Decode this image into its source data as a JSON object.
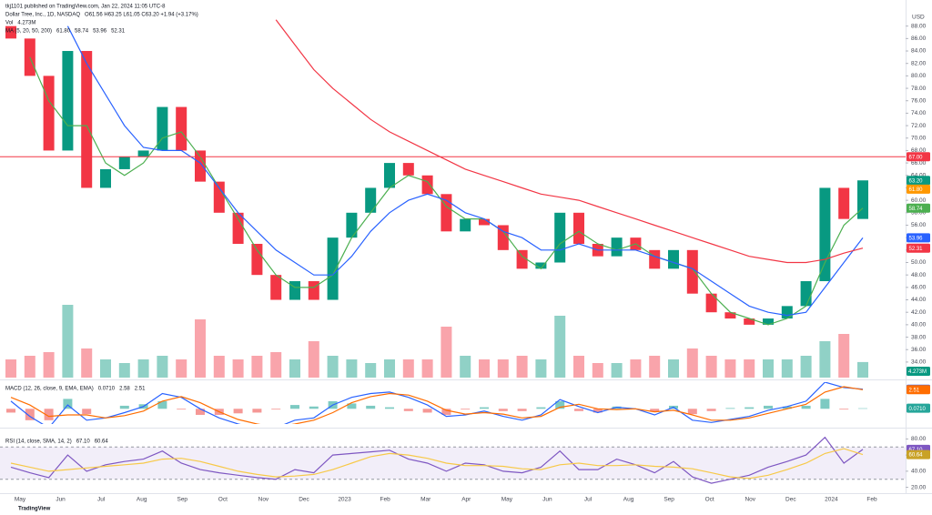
{
  "publisher": "tkj1101 published on TradingView.com, Jan 22, 2024 11:05 UTC-8",
  "currency": "USD",
  "footer": "TradingView",
  "x_labels": [
    "May",
    "Jun",
    "Jul",
    "Aug",
    "Sep",
    "Oct",
    "Nov",
    "Dec",
    "2023",
    "Feb",
    "Mar",
    "Apr",
    "May",
    "Jun",
    "Jul",
    "Aug",
    "Sep",
    "Oct",
    "Nov",
    "Dec",
    "2024",
    "Feb"
  ],
  "chart_data": [
    {
      "type": "candlestick",
      "title": "Dollar Tree, Inc., 1D, NASDAQ",
      "ohlc_text": "O61.56 H63.25 L61.05 C63.20 +1.94 (+3.17%)",
      "up_color": "#089981",
      "down_color": "#f23645",
      "open": [
        88,
        86,
        80,
        68,
        84,
        62,
        65,
        67,
        68,
        75,
        68,
        63,
        58,
        53,
        48,
        44,
        47,
        44,
        54,
        58,
        62,
        66,
        64,
        61,
        55,
        57,
        56,
        52,
        49,
        50,
        58,
        53,
        51,
        54,
        52,
        49,
        52,
        45,
        42,
        41,
        40,
        41,
        43,
        47,
        62,
        57
      ],
      "close": [
        86,
        80,
        68,
        84,
        62,
        65,
        67,
        68,
        75,
        68,
        63,
        58,
        53,
        48,
        44,
        47,
        44,
        54,
        58,
        62,
        66,
        64,
        61,
        55,
        57,
        56,
        52,
        49,
        50,
        58,
        53,
        51,
        54,
        52,
        49,
        52,
        45,
        42,
        41,
        40,
        41,
        43,
        47,
        62,
        57,
        63.2
      ],
      "ma_title": "MA (5, 20, 50, 200)",
      "series": [
        {
          "color": "#4caf50",
          "values": [
            null,
            83,
            76,
            72,
            72,
            66,
            64,
            66,
            70,
            71,
            67,
            62,
            57,
            52,
            48,
            46,
            46,
            48,
            54,
            58,
            62,
            64,
            63,
            59,
            57,
            57,
            55,
            51,
            49,
            53,
            55,
            53,
            52,
            53,
            51,
            50,
            49,
            45,
            42,
            41,
            40,
            41,
            43,
            50,
            56,
            58.74
          ]
        },
        {
          "color": "#2962ff",
          "values": [
            null,
            null,
            null,
            88,
            82,
            77,
            72,
            68.5,
            68,
            68,
            66,
            62,
            58,
            55,
            52,
            50,
            48,
            48,
            51,
            55,
            58,
            60,
            61,
            60,
            58,
            57,
            55,
            54,
            52,
            52,
            53,
            52,
            52,
            52,
            51,
            50,
            49,
            47,
            45,
            43,
            42,
            41.5,
            42,
            46,
            50,
            53.96
          ]
        },
        {
          "color": "#f23645",
          "values": [
            null,
            null,
            null,
            null,
            null,
            null,
            null,
            null,
            null,
            null,
            null,
            null,
            null,
            null,
            89,
            85,
            81,
            78,
            75.5,
            73,
            71,
            69.5,
            68,
            66.5,
            65,
            64,
            63,
            62,
            61,
            60.5,
            60,
            59,
            58,
            57,
            56,
            55,
            54,
            53,
            52,
            51,
            50.5,
            50,
            50,
            50.5,
            51.5,
            52.31
          ]
        }
      ],
      "hline": {
        "value": 67,
        "label": "67.00",
        "color": "#f23645"
      },
      "badges": [
        {
          "value": 63.2,
          "label": "63.20",
          "color": "#089981"
        },
        {
          "value": 61.8,
          "label": "61.80",
          "color": "#ff9800"
        },
        {
          "value": 58.74,
          "label": "58.74",
          "color": "#4caf50"
        },
        {
          "value": 53.96,
          "label": "53.96",
          "color": "#2962ff"
        },
        {
          "value": 52.31,
          "label": "52.31",
          "color": "#f23645"
        }
      ],
      "ylim": [
        31.5,
        90
      ],
      "yticks": [
        {
          "value": 34,
          "label": "34.00"
        },
        {
          "value": 36,
          "label": "36.00"
        },
        {
          "value": 38,
          "label": "38.00"
        },
        {
          "value": 40,
          "label": "40.00"
        },
        {
          "value": 42,
          "label": "42.00"
        },
        {
          "value": 44,
          "label": "44.00"
        },
        {
          "value": 46,
          "label": "46.00"
        },
        {
          "value": 48,
          "label": "48.00"
        },
        {
          "value": 50,
          "label": "50.00"
        },
        {
          "value": 52,
          "label": "52.00"
        },
        {
          "value": 54,
          "label": "54.00"
        },
        {
          "value": 56,
          "label": "56.00"
        },
        {
          "value": 58,
          "label": "58.00"
        },
        {
          "value": 60,
          "label": "60.00"
        },
        {
          "value": 62,
          "label": "62.00"
        },
        {
          "value": 64,
          "label": "64.00"
        },
        {
          "value": 66,
          "label": "66.00"
        },
        {
          "value": 68,
          "label": "68.00"
        },
        {
          "value": 70,
          "label": "70.00"
        },
        {
          "value": 72,
          "label": "72.00"
        },
        {
          "value": 74,
          "label": "74.00"
        },
        {
          "value": 76,
          "label": "76.00"
        },
        {
          "value": 78,
          "label": "78.00"
        },
        {
          "value": 80,
          "label": "80.00"
        },
        {
          "value": 82,
          "label": "82.00"
        },
        {
          "value": 84,
          "label": "84.00"
        },
        {
          "value": 86,
          "label": "86.00"
        },
        {
          "value": 88,
          "label": "88.00"
        }
      ]
    },
    {
      "type": "bar",
      "title": "Vol",
      "values": [
        5,
        6,
        7,
        20,
        8,
        5,
        4,
        5,
        6,
        5,
        16,
        6,
        5,
        6,
        7,
        5,
        10,
        6,
        5,
        4,
        5,
        5,
        5,
        14,
        6,
        5,
        5,
        6,
        5,
        17,
        6,
        4,
        4,
        5,
        6,
        5,
        8,
        6,
        5,
        5,
        5,
        5,
        6,
        10,
        12,
        4.273
      ],
      "ylim": [
        0,
        25
      ],
      "badge": {
        "label": "4.273M",
        "color": "#089981"
      }
    },
    {
      "type": "line",
      "title": "MACD (12, 26, close, 9, EMA, EMA)",
      "series": [
        {
          "color": "#2962ff",
          "values": [
            1,
            -1,
            -2.5,
            0.5,
            -1.5,
            -1.2,
            -0.5,
            0.3,
            2,
            1.5,
            0,
            -1.2,
            -2,
            -2.5,
            -2.5,
            -1.5,
            -1.2,
            0.5,
            1.5,
            2,
            2.2,
            1.5,
            0.5,
            -1,
            -0.8,
            -0.3,
            -1,
            -1.5,
            -0.8,
            1.2,
            0.3,
            -0.5,
            0.2,
            0,
            -0.8,
            0.2,
            -1.5,
            -1.8,
            -1.4,
            -1,
            -0.2,
            0.3,
            1,
            3.5,
            2.8,
            2.58
          ]
        },
        {
          "color": "#ff6d00",
          "values": [
            1.5,
            0.5,
            -1,
            -0.8,
            -0.8,
            -1.2,
            -0.9,
            -0.3,
            1,
            1.6,
            0.8,
            -0.4,
            -1.4,
            -2,
            -2.4,
            -2,
            -1.5,
            -0.5,
            0.8,
            1.6,
            2,
            1.8,
            1,
            -0.2,
            -0.7,
            -0.5,
            -0.7,
            -1.2,
            -1,
            0.2,
            0.6,
            0,
            -0.1,
            0,
            -0.4,
            -0.2,
            -0.8,
            -1.5,
            -1.5,
            -1.2,
            -0.6,
            0,
            0.6,
            2.2,
            2.9,
            2.51
          ]
        }
      ],
      "histogram": {
        "up_color": "#26a69a",
        "down_color": "#ef5350",
        "values": [
          -0.5,
          -1.5,
          -1.5,
          1.3,
          -0.7,
          0,
          0.4,
          0.6,
          1,
          -0.1,
          -0.8,
          -0.8,
          -0.6,
          -0.5,
          -0.1,
          0.5,
          0.3,
          1,
          0.7,
          0.4,
          0.2,
          -0.3,
          -0.5,
          -0.8,
          -0.1,
          0.2,
          -0.3,
          -0.3,
          0.2,
          1,
          -0.3,
          -0.5,
          0.3,
          0,
          -0.4,
          0.4,
          -0.7,
          -0.3,
          0.1,
          0.2,
          0.4,
          0.3,
          0.4,
          1.3,
          -0.1,
          0.071
        ]
      },
      "badges": [
        {
          "value": 2.58,
          "label": "2.58",
          "color": "#2962ff"
        },
        {
          "value": 2.51,
          "label": "2.51",
          "color": "#ff6d00"
        },
        {
          "value": 0.071,
          "label": "0.0710",
          "color": "#26a69a"
        }
      ],
      "ylim": [
        -2,
        3.5
      ]
    },
    {
      "type": "line",
      "title": "RSI (14, close, SMA, 14, 2)",
      "series": [
        {
          "color": "#7e57c2",
          "values": [
            45,
            38,
            32,
            60,
            40,
            48,
            52,
            55,
            65,
            50,
            42,
            38,
            35,
            32,
            30,
            42,
            38,
            60,
            62,
            64,
            66,
            55,
            50,
            40,
            50,
            48,
            40,
            38,
            45,
            65,
            42,
            42,
            55,
            48,
            38,
            52,
            33,
            25,
            30,
            35,
            45,
            52,
            60,
            82,
            50,
            67.1
          ]
        },
        {
          "color": "#f7c948",
          "values": [
            50,
            45,
            40,
            42,
            44,
            46,
            48,
            50,
            55,
            56,
            52,
            46,
            40,
            36,
            33,
            34,
            36,
            42,
            50,
            58,
            62,
            60,
            56,
            50,
            47,
            47,
            46,
            43,
            42,
            48,
            50,
            47,
            47,
            48,
            46,
            45,
            43,
            38,
            33,
            31,
            35,
            42,
            50,
            62,
            68,
            60.64
          ]
        }
      ],
      "band": [
        30,
        70
      ],
      "band_color": "#7e57c2",
      "badges": [
        {
          "value": 67.1,
          "label": "67.10",
          "color": "#7e57c2"
        },
        {
          "value": 60.64,
          "label": "60.64",
          "color": "#c9a227"
        }
      ],
      "ylim": [
        15,
        85
      ],
      "yticks": [
        {
          "value": 20,
          "label": "20.00"
        },
        {
          "value": 40,
          "label": "40.00"
        },
        {
          "value": 60,
          "label": "60.00"
        },
        {
          "value": 80,
          "label": "80.00"
        }
      ]
    }
  ]
}
